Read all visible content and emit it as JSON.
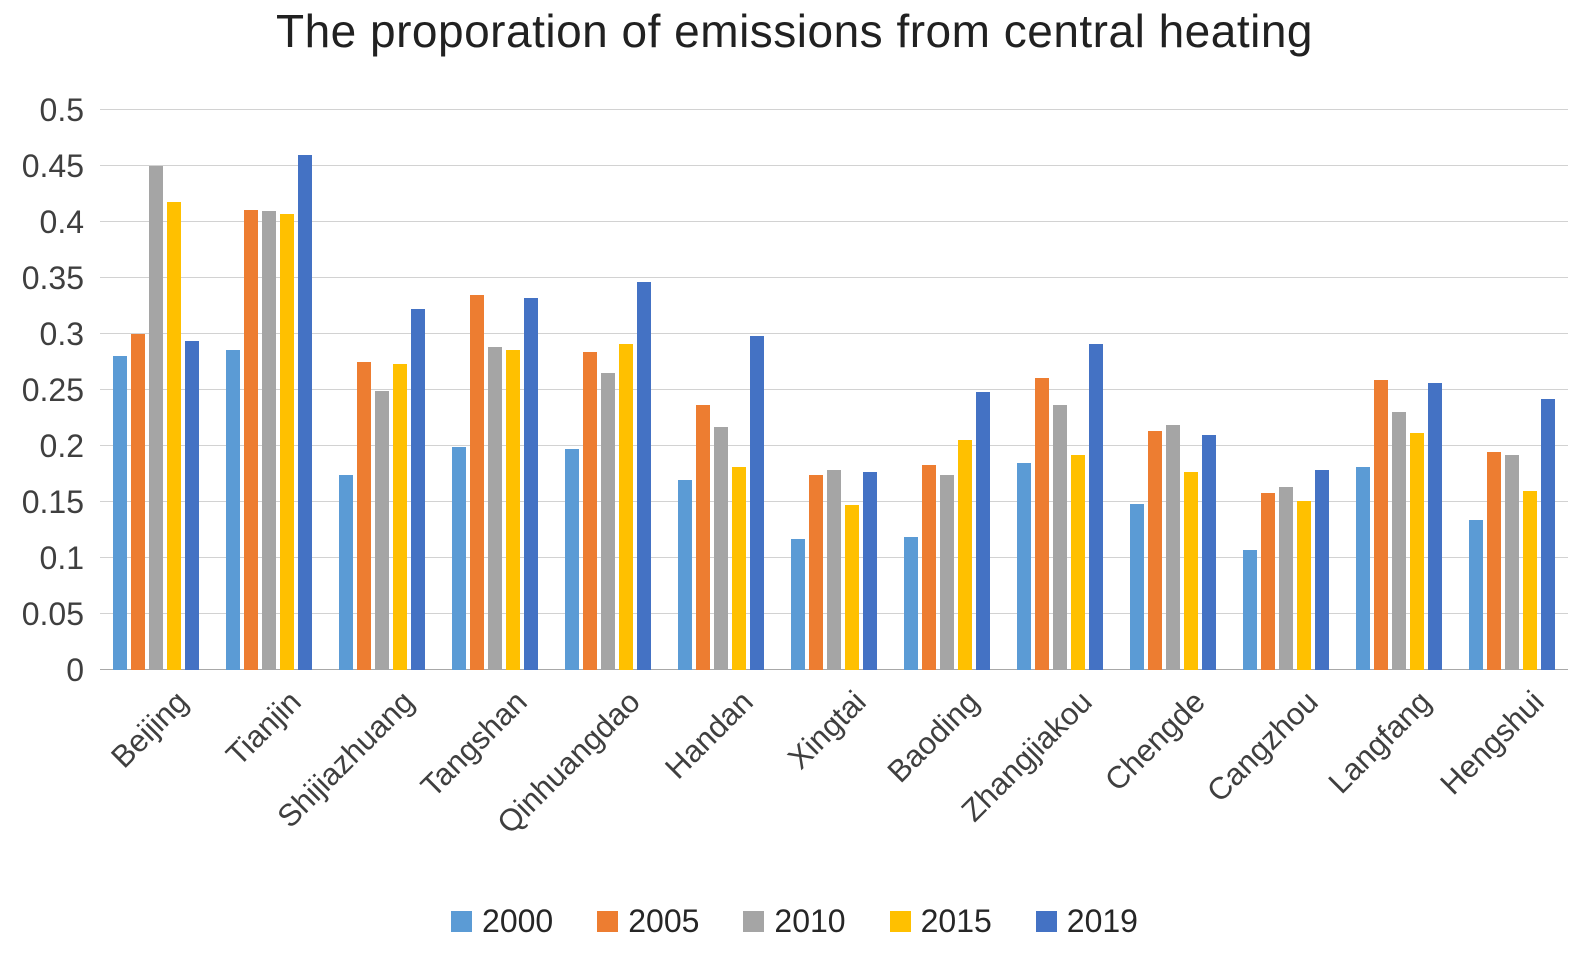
{
  "chart_data": {
    "type": "bar",
    "title": "The proporation of emissions from central heating",
    "categories": [
      "Beijing",
      "Tianjin",
      "Shijiazhuang",
      "Tangshan",
      "Qinhuangdao",
      "Handan",
      "Xingtai",
      "Baoding",
      "Zhangjiakou",
      "Chengde",
      "Cangzhou",
      "Langfang",
      "Hengshui"
    ],
    "series": [
      {
        "name": "2000",
        "color": "#5B9BD5",
        "values": [
          0.28,
          0.286,
          0.174,
          0.199,
          0.197,
          0.17,
          0.117,
          0.119,
          0.185,
          0.148,
          0.107,
          0.181,
          0.134
        ]
      },
      {
        "name": "2005",
        "color": "#ED7D31",
        "values": [
          0.3,
          0.411,
          0.275,
          0.335,
          0.284,
          0.237,
          0.174,
          0.183,
          0.261,
          0.213,
          0.158,
          0.259,
          0.195
        ]
      },
      {
        "name": "2010",
        "color": "#A5A5A5",
        "values": [
          0.45,
          0.41,
          0.249,
          0.288,
          0.265,
          0.217,
          0.179,
          0.174,
          0.237,
          0.219,
          0.163,
          0.23,
          0.192
        ]
      },
      {
        "name": "2015",
        "color": "#FFC000",
        "values": [
          0.418,
          0.407,
          0.273,
          0.286,
          0.291,
          0.181,
          0.147,
          0.205,
          0.192,
          0.177,
          0.151,
          0.212,
          0.16
        ]
      },
      {
        "name": "2019",
        "color": "#4472C4",
        "values": [
          0.294,
          0.46,
          0.322,
          0.332,
          0.346,
          0.298,
          0.177,
          0.248,
          0.291,
          0.21,
          0.179,
          0.256,
          0.242
        ]
      }
    ],
    "ylim": [
      0,
      0.5
    ],
    "ytick_labels": [
      "0.5",
      "0.45",
      "0.4",
      "0.35",
      "0.3",
      "0.25",
      "0.2",
      "0.15",
      "0.1",
      "0.05",
      "0"
    ],
    "ytick_values": [
      0.5,
      0.45,
      0.4,
      0.35,
      0.3,
      0.25,
      0.2,
      0.15,
      0.1,
      0.05,
      0
    ],
    "grid": true,
    "legend_position": "bottom",
    "xlabel": "",
    "ylabel": ""
  }
}
